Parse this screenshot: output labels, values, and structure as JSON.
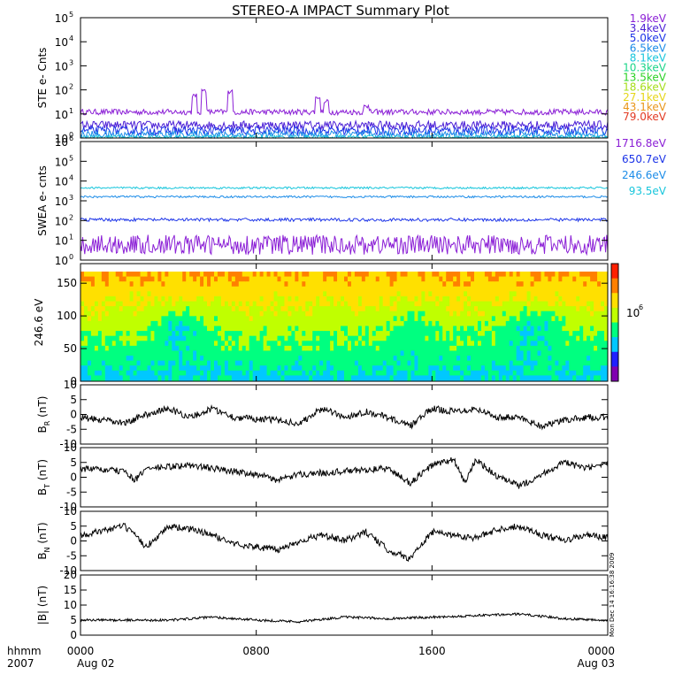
{
  "title": "STEREO-A IMPACT Summary Plot",
  "time_axis": {
    "row1": "hhmm",
    "row2": "2007",
    "ticks": [
      {
        "t": 0,
        "label": "0000",
        "date": "Aug 02"
      },
      {
        "t": 8,
        "label": "0800",
        "date": ""
      },
      {
        "t": 16,
        "label": "1600",
        "date": ""
      },
      {
        "t": 24,
        "label": "0000",
        "date": "Aug 03"
      }
    ],
    "range_hours": [
      0,
      24
    ]
  },
  "side_annotation": "Mon Dec 14 16:16:38 2009",
  "colors": {
    "1.9keV": "#8b1fd6",
    "3.4keV": "#4b1fd6",
    "5.0keV": "#1c34e8",
    "6.5keV": "#1c8ce8",
    "8.1keV": "#18c6dc",
    "10.3keV": "#1cd68a",
    "13.5keV": "#2cd226",
    "18.6keV": "#a6de1a",
    "27.1keV": "#e6d618",
    "43.1keV": "#e8961a",
    "79.0keV": "#e23a22"
  },
  "chart_data": [
    {
      "type": "line",
      "panel": "ste",
      "ylabel": "STE e- Cnts",
      "yscale": "log",
      "ylim": [
        1,
        100000
      ],
      "ytick_exponents": [
        0,
        1,
        2,
        3,
        4,
        5
      ],
      "legend": [
        "1.9keV",
        "3.4keV",
        "5.0keV",
        "6.5keV",
        "8.1keV",
        "10.3keV",
        "13.5keV",
        "18.6keV",
        "27.1keV",
        "43.1keV",
        "79.0keV"
      ],
      "series": [
        {
          "name": "1.9keV",
          "color": "#8b1fd6",
          "level": 12,
          "noise": 0.12,
          "spikes": [
            [
              5.2,
              70
            ],
            [
              5.6,
              110
            ],
            [
              6.8,
              100
            ],
            [
              10.8,
              60
            ],
            [
              11.2,
              40
            ],
            [
              13.0,
              25
            ]
          ]
        },
        {
          "name": "3.4keV",
          "color": "#4b1fd6",
          "level": 3.4,
          "noise": 0.18
        },
        {
          "name": "5.0keV",
          "color": "#1c34e8",
          "level": 2.0,
          "noise": 0.18
        },
        {
          "name": "6.5keV",
          "color": "#1c8ce8",
          "level": 1.4,
          "noise": 0.15
        },
        {
          "name": "8.1keV",
          "color": "#18c6dc",
          "level": 1.1,
          "noise": 0.08
        }
      ]
    },
    {
      "type": "line",
      "panel": "swea",
      "ylabel": "SWEA e- cnts",
      "yscale": "log",
      "ylim": [
        1,
        1000000
      ],
      "ytick_exponents": [
        0,
        1,
        2,
        3,
        4,
        5,
        6
      ],
      "legend": [
        "1716.8eV",
        "650.7eV",
        "246.6eV",
        "93.5eV"
      ],
      "legend_colors": [
        "#8b1fd6",
        "#1c34e8",
        "#1c8ce8",
        "#18c6dc"
      ],
      "series": [
        {
          "name": "93.5eV",
          "color": "#18c6dc",
          "level": 4500,
          "noise": 0.05
        },
        {
          "name": "246.6eV",
          "color": "#1c8ce8",
          "level": 1600,
          "noise": 0.05
        },
        {
          "name": "650.7eV",
          "color": "#1c34e8",
          "level": 110,
          "noise": 0.08
        },
        {
          "name": "1716.8eV",
          "color": "#8b1fd6",
          "level": 6,
          "noise": 0.5
        }
      ]
    },
    {
      "type": "heatmap",
      "panel": "pad",
      "ylabel": "246.6 eV",
      "ylim": [
        0,
        180
      ],
      "yticks": [
        0,
        50,
        100,
        150
      ],
      "colorbar_label": "10",
      "colorbar_exp": "6",
      "colorbar_colors": [
        "#8000b0",
        "#2020ff",
        "#00c8ff",
        "#00ff80",
        "#c0ff00",
        "#ffe000",
        "#ff8000",
        "#ff2000"
      ]
    },
    {
      "type": "line",
      "panel": "br",
      "ylabel": "B",
      "ylabel_sub": "R",
      "ylabel_unit": "(nT)",
      "ylim": [
        -10,
        10
      ],
      "yticks": [
        -10,
        -5,
        0,
        5,
        10
      ],
      "baseline": [
        [
          0,
          -1
        ],
        [
          2,
          -3
        ],
        [
          3,
          0
        ],
        [
          4,
          2
        ],
        [
          5,
          -1
        ],
        [
          6,
          2
        ],
        [
          7,
          -1
        ],
        [
          9,
          -2
        ],
        [
          10,
          -3
        ],
        [
          11,
          2
        ],
        [
          12,
          -1
        ],
        [
          13,
          1
        ],
        [
          14,
          -1
        ],
        [
          15,
          -4
        ],
        [
          16,
          2
        ],
        [
          17,
          1
        ],
        [
          18,
          2
        ],
        [
          19,
          -1
        ],
        [
          20,
          -1
        ],
        [
          21,
          -4
        ],
        [
          22,
          -2
        ],
        [
          23,
          -1
        ],
        [
          24,
          -1
        ]
      ]
    },
    {
      "type": "line",
      "panel": "bt",
      "ylabel": "B",
      "ylabel_sub": "T",
      "ylabel_unit": "(nT)",
      "ylim": [
        -10,
        10
      ],
      "yticks": [
        -10,
        -5,
        0,
        5,
        10
      ],
      "baseline": [
        [
          0,
          3
        ],
        [
          2,
          2
        ],
        [
          2.5,
          -1
        ],
        [
          3,
          3
        ],
        [
          5,
          4
        ],
        [
          6,
          3
        ],
        [
          8,
          1
        ],
        [
          9,
          -1
        ],
        [
          10,
          1
        ],
        [
          12,
          2
        ],
        [
          14,
          3
        ],
        [
          15,
          -2
        ],
        [
          16,
          4
        ],
        [
          17,
          6
        ],
        [
          17.5,
          -2
        ],
        [
          18,
          6
        ],
        [
          19,
          0
        ],
        [
          20,
          -3
        ],
        [
          21,
          1
        ],
        [
          22,
          5
        ],
        [
          23,
          3
        ],
        [
          24,
          4
        ]
      ]
    },
    {
      "type": "line",
      "panel": "bn",
      "ylabel": "B",
      "ylabel_sub": "N",
      "ylabel_unit": "(nT)",
      "ylim": [
        -10,
        10
      ],
      "yticks": [
        -10,
        -5,
        0,
        5,
        10
      ],
      "baseline": [
        [
          0,
          2
        ],
        [
          2,
          5
        ],
        [
          3,
          -2
        ],
        [
          4,
          5
        ],
        [
          5,
          4
        ],
        [
          6,
          2
        ],
        [
          7,
          -1
        ],
        [
          8,
          -2
        ],
        [
          9,
          -3
        ],
        [
          10,
          0
        ],
        [
          11,
          2
        ],
        [
          12,
          0
        ],
        [
          13,
          3
        ],
        [
          14,
          -3
        ],
        [
          15,
          -6
        ],
        [
          16,
          3
        ],
        [
          17,
          2
        ],
        [
          18,
          1
        ],
        [
          19,
          4
        ],
        [
          20,
          5
        ],
        [
          21,
          2
        ],
        [
          22,
          0
        ],
        [
          23,
          2
        ],
        [
          24,
          1
        ]
      ]
    },
    {
      "type": "line",
      "panel": "bmag",
      "ylabel": "|B| (nT)",
      "ylim": [
        0,
        20
      ],
      "yticks": [
        0,
        5,
        10,
        15,
        20
      ],
      "baseline": [
        [
          0,
          5
        ],
        [
          4,
          5
        ],
        [
          6,
          6
        ],
        [
          8,
          5
        ],
        [
          10,
          4.5
        ],
        [
          12,
          6
        ],
        [
          14,
          5.5
        ],
        [
          16,
          6
        ],
        [
          18,
          6.5
        ],
        [
          20,
          7
        ],
        [
          22,
          5.5
        ],
        [
          24,
          5
        ]
      ]
    }
  ]
}
